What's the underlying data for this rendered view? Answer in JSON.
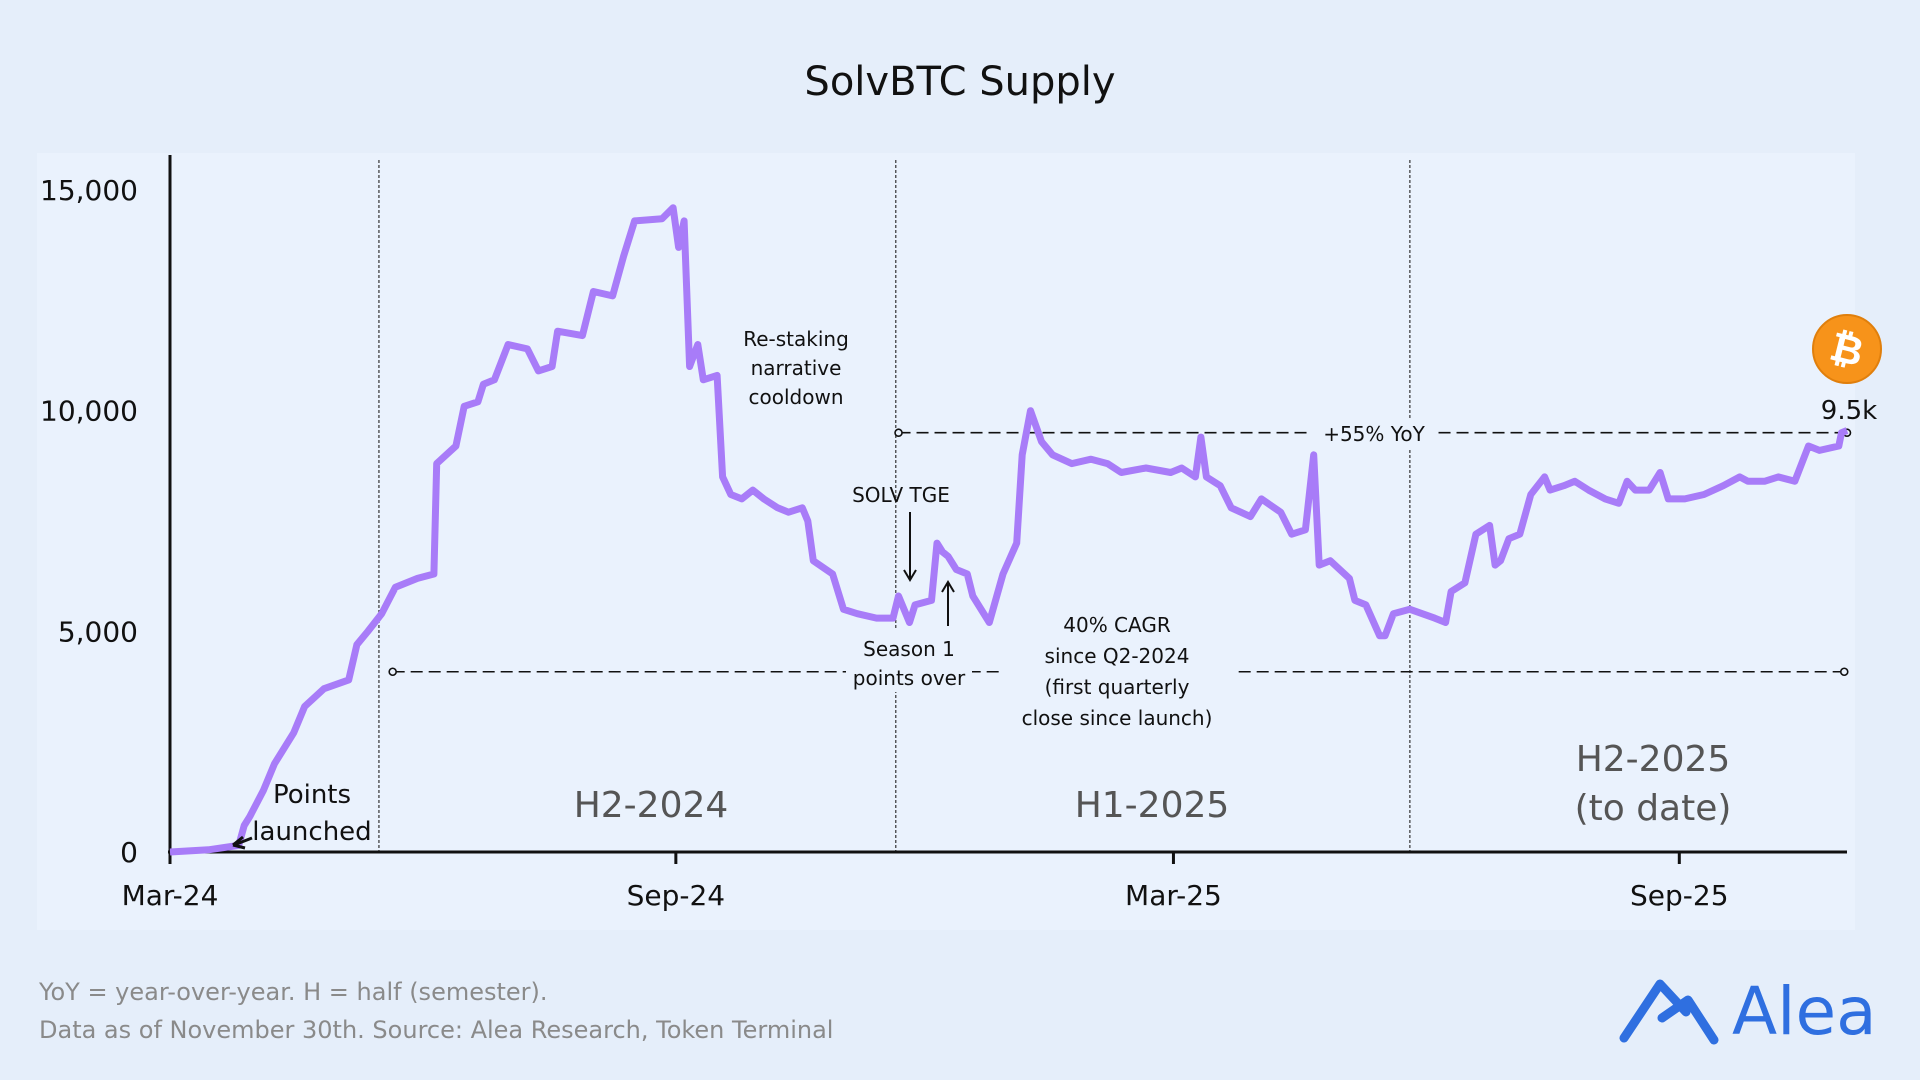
{
  "chart_data": {
    "type": "line",
    "title": "SolvBTC Supply",
    "xlabel": "",
    "ylabel": "",
    "ylim": [
      0,
      15000
    ],
    "xlim": [
      "2024-03-01",
      "2025-11-01"
    ],
    "grid": false,
    "y_ticks": [
      {
        "value": 0,
        "label": "0"
      },
      {
        "value": 5000,
        "label": "5,000"
      },
      {
        "value": 10000,
        "label": "10,000"
      },
      {
        "value": 15000,
        "label": "15,000"
      }
    ],
    "x_ticks": [
      {
        "date": "2024-03-01",
        "label": "Mar-24"
      },
      {
        "date": "2024-09-01",
        "label": "Sep-24"
      },
      {
        "date": "2025-03-01",
        "label": "Mar-25"
      },
      {
        "date": "2025-09-01",
        "label": "Sep-25"
      }
    ],
    "line_color": "#a87cf8",
    "series": [
      {
        "points": [
          [
            "2024-03-01",
            0
          ],
          [
            "2024-03-15",
            50
          ],
          [
            "2024-03-26",
            150
          ],
          [
            "2024-03-28",
            600
          ],
          [
            "2024-03-30",
            800
          ],
          [
            "2024-04-04",
            1400
          ],
          [
            "2024-04-08",
            2000
          ],
          [
            "2024-04-15",
            2700
          ],
          [
            "2024-04-19",
            3300
          ],
          [
            "2024-04-26",
            3700
          ],
          [
            "2024-05-05",
            3900
          ],
          [
            "2024-05-08",
            4700
          ],
          [
            "2024-05-12",
            5000
          ],
          [
            "2024-05-17",
            5400
          ],
          [
            "2024-05-22",
            6000
          ],
          [
            "2024-05-30",
            6200
          ],
          [
            "2024-06-05",
            6300
          ],
          [
            "2024-06-06",
            8800
          ],
          [
            "2024-06-13",
            9200
          ],
          [
            "2024-06-16",
            10100
          ],
          [
            "2024-06-21",
            10200
          ],
          [
            "2024-06-23",
            10600
          ],
          [
            "2024-06-27",
            10700
          ],
          [
            "2024-07-02",
            11500
          ],
          [
            "2024-07-09",
            11400
          ],
          [
            "2024-07-13",
            10900
          ],
          [
            "2024-07-18",
            11000
          ],
          [
            "2024-07-20",
            11800
          ],
          [
            "2024-07-29",
            11700
          ],
          [
            "2024-08-02",
            12700
          ],
          [
            "2024-08-09",
            12600
          ],
          [
            "2024-08-13",
            13500
          ],
          [
            "2024-08-17",
            14300
          ],
          [
            "2024-08-27",
            14350
          ],
          [
            "2024-08-31",
            14600
          ],
          [
            "2024-09-02",
            13700
          ],
          [
            "2024-09-04",
            14300
          ],
          [
            "2024-09-06",
            11000
          ],
          [
            "2024-09-09",
            11500
          ],
          [
            "2024-09-11",
            10700
          ],
          [
            "2024-09-16",
            10800
          ],
          [
            "2024-09-18",
            8500
          ],
          [
            "2024-09-21",
            8100
          ],
          [
            "2024-09-25",
            8000
          ],
          [
            "2024-09-29",
            8200
          ],
          [
            "2024-10-03",
            8000
          ],
          [
            "2024-10-08",
            7800
          ],
          [
            "2024-10-12",
            7700
          ],
          [
            "2024-10-17",
            7800
          ],
          [
            "2024-10-19",
            7500
          ],
          [
            "2024-10-21",
            6600
          ],
          [
            "2024-10-28",
            6300
          ],
          [
            "2024-11-01",
            5500
          ],
          [
            "2024-11-06",
            5400
          ],
          [
            "2024-11-13",
            5300
          ],
          [
            "2024-11-19",
            5300
          ],
          [
            "2024-11-21",
            5800
          ],
          [
            "2024-11-25",
            5200
          ],
          [
            "2024-11-27",
            5600
          ],
          [
            "2024-12-03",
            5700
          ],
          [
            "2024-12-05",
            7000
          ],
          [
            "2024-12-07",
            6800
          ],
          [
            "2024-12-09",
            6700
          ],
          [
            "2024-12-12",
            6400
          ],
          [
            "2024-12-16",
            6300
          ],
          [
            "2024-12-18",
            5800
          ],
          [
            "2024-12-24",
            5200
          ],
          [
            "2024-12-29",
            6300
          ],
          [
            "2025-01-03",
            7000
          ],
          [
            "2025-01-05",
            9000
          ],
          [
            "2025-01-08",
            10000
          ],
          [
            "2025-01-12",
            9300
          ],
          [
            "2025-01-16",
            9000
          ],
          [
            "2025-01-23",
            8800
          ],
          [
            "2025-01-30",
            8900
          ],
          [
            "2025-02-05",
            8800
          ],
          [
            "2025-02-10",
            8600
          ],
          [
            "2025-02-19",
            8700
          ],
          [
            "2025-02-28",
            8600
          ],
          [
            "2025-03-04",
            8700
          ],
          [
            "2025-03-09",
            8500
          ],
          [
            "2025-03-11",
            9400
          ],
          [
            "2025-03-13",
            8500
          ],
          [
            "2025-03-18",
            8300
          ],
          [
            "2025-03-22",
            7800
          ],
          [
            "2025-03-29",
            7600
          ],
          [
            "2025-04-02",
            8000
          ],
          [
            "2025-04-09",
            7700
          ],
          [
            "2025-04-13",
            7200
          ],
          [
            "2025-04-18",
            7300
          ],
          [
            "2025-04-21",
            9000
          ],
          [
            "2025-04-23",
            6500
          ],
          [
            "2025-04-27",
            6600
          ],
          [
            "2025-05-04",
            6200
          ],
          [
            "2025-05-06",
            5700
          ],
          [
            "2025-05-10",
            5600
          ],
          [
            "2025-05-15",
            4900
          ],
          [
            "2025-05-17",
            4900
          ],
          [
            "2025-05-20",
            5400
          ],
          [
            "2025-05-26",
            5500
          ],
          [
            "2025-06-04",
            5300
          ],
          [
            "2025-06-08",
            5200
          ],
          [
            "2025-06-10",
            5900
          ],
          [
            "2025-06-15",
            6100
          ],
          [
            "2025-06-19",
            7200
          ],
          [
            "2025-06-24",
            7400
          ],
          [
            "2025-06-26",
            6500
          ],
          [
            "2025-06-28",
            6600
          ],
          [
            "2025-07-01",
            7100
          ],
          [
            "2025-07-05",
            7200
          ],
          [
            "2025-07-09",
            8100
          ],
          [
            "2025-07-14",
            8500
          ],
          [
            "2025-07-16",
            8200
          ],
          [
            "2025-07-21",
            8300
          ],
          [
            "2025-07-25",
            8400
          ],
          [
            "2025-07-30",
            8200
          ],
          [
            "2025-08-05",
            8000
          ],
          [
            "2025-08-10",
            7900
          ],
          [
            "2025-08-13",
            8400
          ],
          [
            "2025-08-16",
            8200
          ],
          [
            "2025-08-21",
            8200
          ],
          [
            "2025-08-25",
            8600
          ],
          [
            "2025-08-28",
            8000
          ],
          [
            "2025-09-03",
            8000
          ],
          [
            "2025-09-10",
            8100
          ],
          [
            "2025-09-17",
            8300
          ],
          [
            "2025-09-23",
            8500
          ],
          [
            "2025-09-26",
            8400
          ],
          [
            "2025-10-02",
            8400
          ],
          [
            "2025-10-07",
            8500
          ],
          [
            "2025-10-13",
            8400
          ],
          [
            "2025-10-18",
            9200
          ],
          [
            "2025-10-22",
            9100
          ],
          [
            "2025-10-29",
            9200
          ],
          [
            "2025-10-30",
            9500
          ],
          [
            "2025-11-01",
            9550
          ]
        ]
      }
    ],
    "period_dividers": [
      "2024-05-16",
      "2024-11-20",
      "2025-05-26"
    ],
    "period_labels": [
      {
        "lines": [
          "H2-2024"
        ]
      },
      {
        "lines": [
          "H1-2025"
        ]
      },
      {
        "lines": [
          "H2-2025",
          "(to date)"
        ]
      }
    ],
    "reference_lines": [
      {
        "value": 4084,
        "from": "2024-05-21",
        "to": "2025-10-31",
        "label": [
          "40% CAGR",
          "since Q2-2024",
          "(first quarterly",
          "close since launch)"
        ]
      },
      {
        "value": 9500,
        "from": "2024-11-21",
        "to": "2025-11-01",
        "label": [
          "+55% YoY"
        ]
      }
    ],
    "annotations": {
      "points_launched": [
        "Points",
        "launched"
      ],
      "restaking": [
        "Re-staking",
        "narrative",
        "cooldown"
      ],
      "solv_tge": "SOLV TGE",
      "season1": [
        "Season 1",
        "points over"
      ],
      "last_value": "9.5k"
    },
    "end_icon": "bitcoin-icon"
  },
  "footer": {
    "note_line1": "YoY = year-over-year. H = half (semester).",
    "note_line2": "Data as of November 30th. Source: Alea Research, Token Terminal",
    "brand": "Alea",
    "brand_color": "#2f6fe0"
  }
}
